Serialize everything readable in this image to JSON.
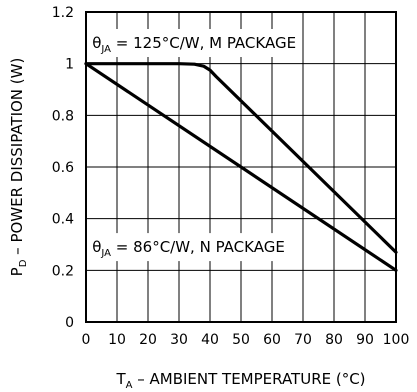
{
  "chart_data": {
    "type": "line",
    "xlabel": {
      "prefix": "T",
      "sub": "A",
      "rest": " – AMBIENT TEMPERATURE (°C)"
    },
    "ylabel": {
      "prefix": "P",
      "sub": "D",
      "rest": " – POWER DISSIPATION (W)"
    },
    "xlim": [
      0,
      100
    ],
    "ylim": [
      0,
      1.2
    ],
    "x_ticks": [
      "0",
      "10",
      "20",
      "30",
      "40",
      "50",
      "60",
      "70",
      "80",
      "90",
      "100"
    ],
    "y_ticks": [
      "0",
      "0.2",
      "0.4",
      "0.6",
      "0.8",
      "1",
      "1.2"
    ],
    "grid": true,
    "series": [
      {
        "name": "M PACKAGE",
        "x": [
          0,
          30,
          35,
          38,
          40,
          42,
          100
        ],
        "y": [
          1.0,
          1.0,
          0.998,
          0.99,
          0.975,
          0.95,
          0.27
        ]
      },
      {
        "name": "N PACKAGE",
        "x": [
          0,
          100
        ],
        "y": [
          1.0,
          0.2
        ]
      }
    ],
    "annotations": [
      {
        "theta": "θ",
        "sub": "JA",
        "text": " = 125°C/W, M PACKAGE"
      },
      {
        "theta": "θ",
        "sub": "JA",
        "text": " = 86°C/W, N PACKAGE"
      }
    ]
  }
}
